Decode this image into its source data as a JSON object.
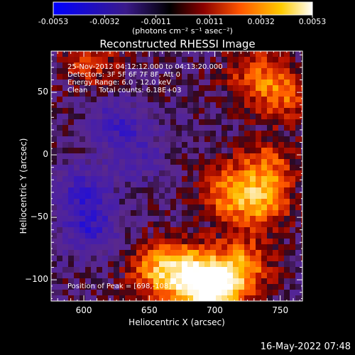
{
  "colorbar": {
    "tick_labels": [
      "-0.0053",
      "-0.0032",
      "-0.0011",
      "0.0011",
      "0.0032",
      "0.0053"
    ],
    "tick_values": [
      -0.0053,
      -0.0032,
      -0.0011,
      0.0011,
      0.0032,
      0.0053
    ],
    "range": [
      -0.0053,
      0.0053
    ],
    "unit_label": "(photons cm⁻² s⁻¹ asec⁻²)",
    "colors": [
      "#0000ff",
      "#000000",
      "#8b0000",
      "#ff6a00",
      "#ffd400",
      "#ffffff"
    ]
  },
  "chart_data": {
    "type": "heatmap",
    "title": "Reconstructed RHESSI Image",
    "xlabel": "Heliocentric X (arcsec)",
    "ylabel": "Heliocentric Y (arcsec)",
    "xlim": [
      575,
      767
    ],
    "ylim": [
      -117,
      83
    ],
    "x_ticks": [
      600,
      650,
      700,
      750
    ],
    "y_ticks": [
      -100,
      -50,
      0,
      50
    ],
    "x_tick_labels": [
      "600",
      "650",
      "700",
      "750"
    ],
    "y_tick_labels": [
      "−100",
      "−50",
      "0",
      "50"
    ],
    "annotations": {
      "time_range": "25-Nov-2012 04:12:12.000 to 04:13:20.000",
      "detectors": "Detectors: 3F 5F 6F 7F 8F, Att 0",
      "energy_range": "Energy Range: 6.0 - 12.0 keV",
      "algorithm": "Clean     Total counts: 6.18E+03",
      "peak": "Position of Peak = [698,-108]"
    },
    "peak_position": [
      698,
      -108
    ],
    "features": [
      {
        "x": 698,
        "y": -108,
        "value": 0.0053
      },
      {
        "x": 680,
        "y": -95,
        "value": 0.0038
      },
      {
        "x": 655,
        "y": -92,
        "value": 0.0032
      },
      {
        "x": 720,
        "y": -90,
        "value": 0.0034
      },
      {
        "x": 735,
        "y": -40,
        "value": 0.003
      },
      {
        "x": 710,
        "y": -30,
        "value": 0.0028
      },
      {
        "x": 740,
        "y": -10,
        "value": 0.0026
      },
      {
        "x": 752,
        "y": 50,
        "value": 0.0027
      },
      {
        "x": 728,
        "y": 65,
        "value": 0.002
      },
      {
        "x": 612,
        "y": 70,
        "value": 0.0011
      },
      {
        "x": 598,
        "y": 78,
        "value": 0.0012
      },
      {
        "x": 605,
        "y": -60,
        "value": -0.0022
      },
      {
        "x": 598,
        "y": -30,
        "value": -0.002
      },
      {
        "x": 625,
        "y": 28,
        "value": -0.0018
      },
      {
        "x": 640,
        "y": 0,
        "value": -0.0015
      }
    ]
  },
  "footer": {
    "timestamp": "16-May-2022 07:48"
  }
}
